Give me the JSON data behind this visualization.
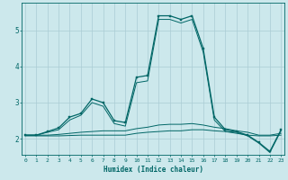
{
  "xlabel": "Humidex (Indice chaleur)",
  "background_color": "#cce8ec",
  "grid_color": "#aaccd4",
  "line_color": "#006666",
  "x_ticks": [
    0,
    1,
    2,
    3,
    4,
    5,
    6,
    7,
    8,
    9,
    10,
    11,
    12,
    13,
    14,
    15,
    16,
    17,
    18,
    19,
    20,
    21,
    22,
    23
  ],
  "y_ticks": [
    2,
    3,
    4,
    5
  ],
  "xlim": [
    -0.3,
    23.3
  ],
  "ylim": [
    1.55,
    5.75
  ],
  "line_main": {
    "x": [
      0,
      1,
      2,
      3,
      4,
      5,
      6,
      7,
      8,
      9,
      10,
      11,
      12,
      13,
      14,
      15,
      16,
      17,
      18,
      19,
      20,
      21,
      22,
      23
    ],
    "y": [
      2.1,
      2.1,
      2.2,
      2.3,
      2.6,
      2.7,
      3.1,
      3.0,
      2.5,
      2.45,
      3.7,
      3.75,
      5.4,
      5.4,
      5.3,
      5.4,
      4.5,
      2.6,
      2.25,
      2.2,
      2.1,
      1.9,
      1.65,
      2.25
    ]
  },
  "line_flat1": {
    "x": [
      0,
      1,
      2,
      3,
      4,
      5,
      6,
      7,
      8,
      9,
      10,
      11,
      12,
      13,
      14,
      15,
      16,
      17,
      18,
      19,
      20,
      21,
      22,
      23
    ],
    "y": [
      2.08,
      2.08,
      2.08,
      2.08,
      2.09,
      2.1,
      2.1,
      2.1,
      2.1,
      2.1,
      2.15,
      2.18,
      2.2,
      2.22,
      2.22,
      2.25,
      2.25,
      2.22,
      2.2,
      2.15,
      2.1,
      2.08,
      2.08,
      2.1
    ]
  },
  "line_flat2": {
    "x": [
      0,
      1,
      2,
      3,
      4,
      5,
      6,
      7,
      8,
      9,
      10,
      11,
      12,
      13,
      14,
      15,
      16,
      17,
      18,
      19,
      20,
      21,
      22,
      23
    ],
    "y": [
      2.1,
      2.1,
      2.1,
      2.12,
      2.15,
      2.18,
      2.2,
      2.22,
      2.22,
      2.22,
      2.28,
      2.32,
      2.38,
      2.4,
      2.4,
      2.42,
      2.38,
      2.32,
      2.28,
      2.22,
      2.18,
      2.1,
      2.1,
      2.15
    ]
  },
  "line_secondary": {
    "x": [
      0,
      1,
      2,
      3,
      4,
      5,
      6,
      7,
      8,
      9,
      10,
      11,
      12,
      13,
      14,
      15,
      16,
      17,
      18,
      19,
      20,
      21,
      22,
      23
    ],
    "y": [
      2.1,
      2.1,
      2.18,
      2.25,
      2.52,
      2.65,
      3.0,
      2.9,
      2.42,
      2.35,
      3.55,
      3.6,
      5.3,
      5.3,
      5.2,
      5.3,
      4.4,
      2.52,
      2.2,
      2.18,
      2.08,
      1.88,
      1.62,
      2.22
    ]
  }
}
